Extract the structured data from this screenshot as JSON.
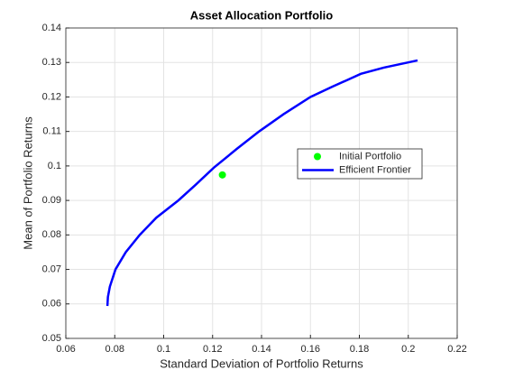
{
  "chart_data": {
    "type": "line",
    "title": "Asset  Allocation  Portfolio",
    "xlabel": "Standard Deviation of Portfolio Returns",
    "ylabel": "Mean of Portfolio Returns",
    "xlim": [
      0.06,
      0.22
    ],
    "xticks": [
      0.06,
      0.08,
      0.1,
      0.12,
      0.14,
      0.16,
      0.18,
      0.2,
      0.22
    ],
    "ylim": [
      0.05,
      0.14
    ],
    "yticks": [
      0.05,
      0.06,
      0.07,
      0.08,
      0.09,
      0.1,
      0.11,
      0.12,
      0.13,
      0.14
    ],
    "grid": true,
    "legend": "east",
    "series": [
      {
        "name": "Initial Portfolio",
        "kind": "scatter",
        "color": "#00ff00",
        "x": [
          0.124
        ],
        "values": [
          0.0974
        ]
      },
      {
        "name": "Efficient Frontier",
        "kind": "line",
        "color": "#0000ff",
        "x": [
          0.077,
          0.0772,
          0.078,
          0.0803,
          0.0845,
          0.0902,
          0.097,
          0.106,
          0.113,
          0.1205,
          0.13,
          0.139,
          0.149,
          0.16,
          0.169,
          0.175,
          0.1806,
          0.19,
          0.2038
        ],
        "values": [
          0.0594,
          0.062,
          0.065,
          0.07,
          0.075,
          0.08,
          0.085,
          0.09,
          0.0945,
          0.0995,
          0.105,
          0.11,
          0.115,
          0.12,
          0.123,
          0.1249,
          0.1267,
          0.1285,
          0.1306
        ]
      }
    ]
  }
}
